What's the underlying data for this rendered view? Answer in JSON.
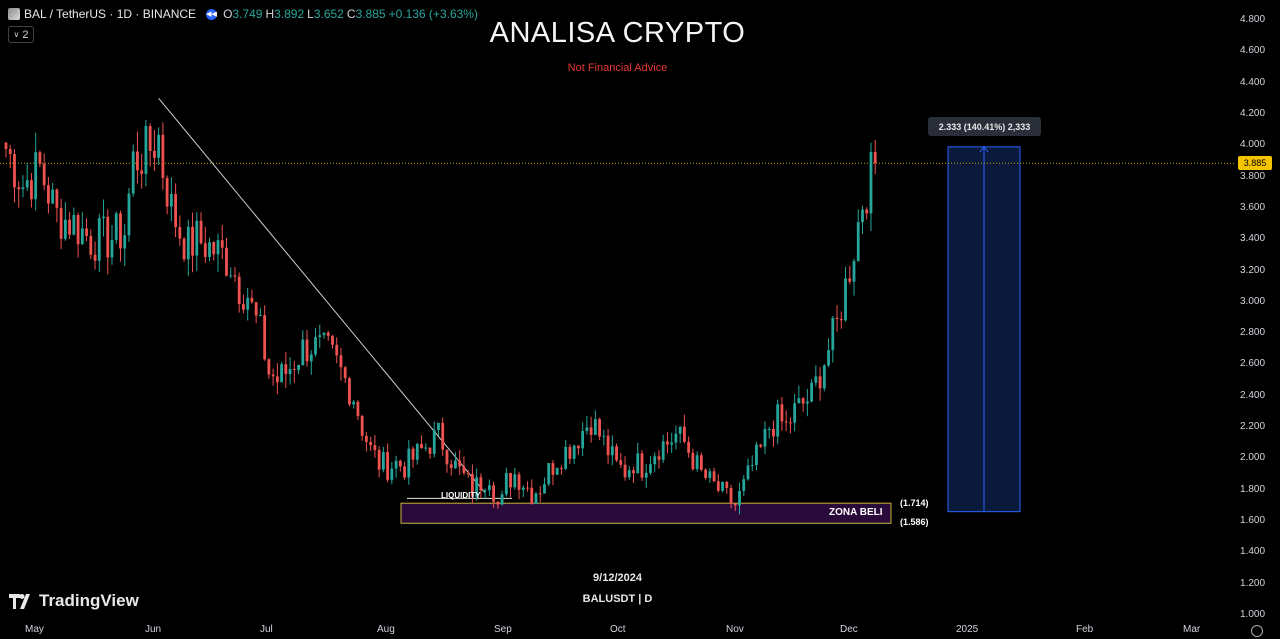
{
  "header": {
    "symbol": "BAL / TetherUS · 1D · BINANCE",
    "o_label": "O",
    "o_value": "3.749",
    "h_label": "H",
    "h_value": "3.892",
    "l_label": "L",
    "l_value": "3.652",
    "c_label": "C",
    "c_value": "3.885",
    "change": "+0.136 (+3.63%)",
    "indicator_count": "2"
  },
  "overlay": {
    "title": "ANALISA CRYPTO",
    "subtitle": "Not Financial Advice",
    "date": "9/12/2024",
    "ticker": "BALUSDT | D",
    "brand": "TradingView"
  },
  "annotations": {
    "liquidity": "LIQUIDITY",
    "zone_label": "ZONA BELI",
    "zone_top_label": "(1.714)",
    "zone_bottom_label": "(1.586)",
    "measure_label": "2.333 (140.41%) 2,333",
    "current_price_label": "3.885"
  },
  "colors": {
    "up": "#26a69a",
    "down": "#ef5350",
    "zone_fill": "#2a0a3a",
    "zone_border": "#c8b43c",
    "measure_fill": "#0b1a3a",
    "measure_line": "#2962ff",
    "trendline": "#d0d0d0",
    "price_line": "#c8a800"
  },
  "chart_data": {
    "type": "candlestick",
    "title": "ANALISA CRYPTO",
    "xlabel": "",
    "ylabel": "",
    "ylim": [
      1.0,
      4.8
    ],
    "y_ticks": [
      "4.800",
      "4.600",
      "4.400",
      "4.200",
      "4.000",
      "3.800",
      "3.600",
      "3.400",
      "3.200",
      "3.000",
      "2.800",
      "2.600",
      "2.400",
      "2.200",
      "2.000",
      "1.800",
      "1.600",
      "1.400",
      "1.200",
      "1.000"
    ],
    "x_ticks": [
      "May",
      "Jun",
      "Jul",
      "Aug",
      "Sep",
      "Oct",
      "Nov",
      "Dec",
      "2025",
      "Feb",
      "Mar"
    ],
    "ohlc_path": [
      [
        0,
        3.98
      ],
      [
        4,
        3.75
      ],
      [
        8,
        3.85
      ],
      [
        12,
        3.55
      ],
      [
        16,
        3.5
      ],
      [
        20,
        3.4
      ],
      [
        24,
        3.4
      ],
      [
        28,
        3.45
      ],
      [
        30,
        3.9
      ],
      [
        33,
        3.95
      ],
      [
        36,
        4.05
      ],
      [
        37,
        3.85
      ],
      [
        39,
        3.6
      ],
      [
        41,
        3.45
      ],
      [
        43,
        3.35
      ],
      [
        45,
        3.4
      ],
      [
        48,
        3.35
      ],
      [
        51,
        3.3
      ],
      [
        53,
        3.25
      ],
      [
        55,
        3.1
      ],
      [
        57,
        3.05
      ],
      [
        58,
        2.95
      ],
      [
        60,
        2.8
      ],
      [
        62,
        2.55
      ],
      [
        64,
        2.5
      ],
      [
        66,
        2.55
      ],
      [
        68,
        2.62
      ],
      [
        70,
        2.7
      ],
      [
        72,
        2.72
      ],
      [
        74,
        2.7
      ],
      [
        76,
        2.68
      ],
      [
        78,
        2.6
      ],
      [
        80,
        2.5
      ],
      [
        82,
        2.4
      ],
      [
        84,
        2.2
      ],
      [
        86,
        2.05
      ],
      [
        88,
        1.97
      ],
      [
        90,
        1.95
      ],
      [
        92,
        1.97
      ],
      [
        94,
        1.95
      ],
      [
        96,
        2.0
      ],
      [
        98,
        2.05
      ],
      [
        100,
        2.1
      ],
      [
        102,
        2.15
      ],
      [
        104,
        2.05
      ],
      [
        106,
        1.95
      ],
      [
        108,
        1.88
      ],
      [
        110,
        1.8
      ],
      [
        112,
        1.85
      ],
      [
        114,
        1.9
      ],
      [
        115,
        1.8
      ],
      [
        116,
        1.7
      ],
      [
        117,
        1.72
      ],
      [
        118,
        1.85
      ],
      [
        120,
        1.9
      ],
      [
        122,
        1.85
      ],
      [
        124,
        1.78
      ],
      [
        126,
        1.82
      ],
      [
        128,
        1.92
      ],
      [
        130,
        2.0
      ],
      [
        132,
        2.05
      ],
      [
        134,
        2.1
      ],
      [
        136,
        2.18
      ],
      [
        138,
        2.25
      ],
      [
        140,
        2.15
      ],
      [
        142,
        2.05
      ],
      [
        144,
        1.95
      ],
      [
        146,
        1.92
      ],
      [
        148,
        1.98
      ],
      [
        150,
        1.95
      ],
      [
        152,
        2.02
      ],
      [
        154,
        2.08
      ],
      [
        156,
        2.1
      ],
      [
        158,
        2.15
      ],
      [
        160,
        2.1
      ],
      [
        162,
        2.0
      ],
      [
        164,
        1.9
      ],
      [
        166,
        1.85
      ],
      [
        168,
        1.8
      ],
      [
        170,
        1.75
      ],
      [
        172,
        1.7
      ],
      [
        174,
        1.82
      ],
      [
        176,
        1.95
      ],
      [
        178,
        2.05
      ],
      [
        180,
        2.2
      ],
      [
        182,
        2.25
      ],
      [
        184,
        2.2
      ],
      [
        186,
        2.3
      ],
      [
        188,
        2.35
      ],
      [
        190,
        2.4
      ],
      [
        192,
        2.55
      ],
      [
        194,
        2.7
      ],
      [
        196,
        2.85
      ],
      [
        198,
        3.1
      ],
      [
        200,
        3.35
      ],
      [
        202,
        3.65
      ],
      [
        204,
        3.8
      ],
      [
        205,
        3.885
      ]
    ],
    "last_close": 3.885,
    "trendline": {
      "from": [
        36,
        4.3
      ],
      "to": [
        113,
        1.78
      ]
    },
    "buy_zone": {
      "top": 1.714,
      "bottom": 1.586
    },
    "measure": {
      "from": 1.66,
      "to": 3.99,
      "change": 2.333,
      "change_pct": 140.41
    }
  }
}
